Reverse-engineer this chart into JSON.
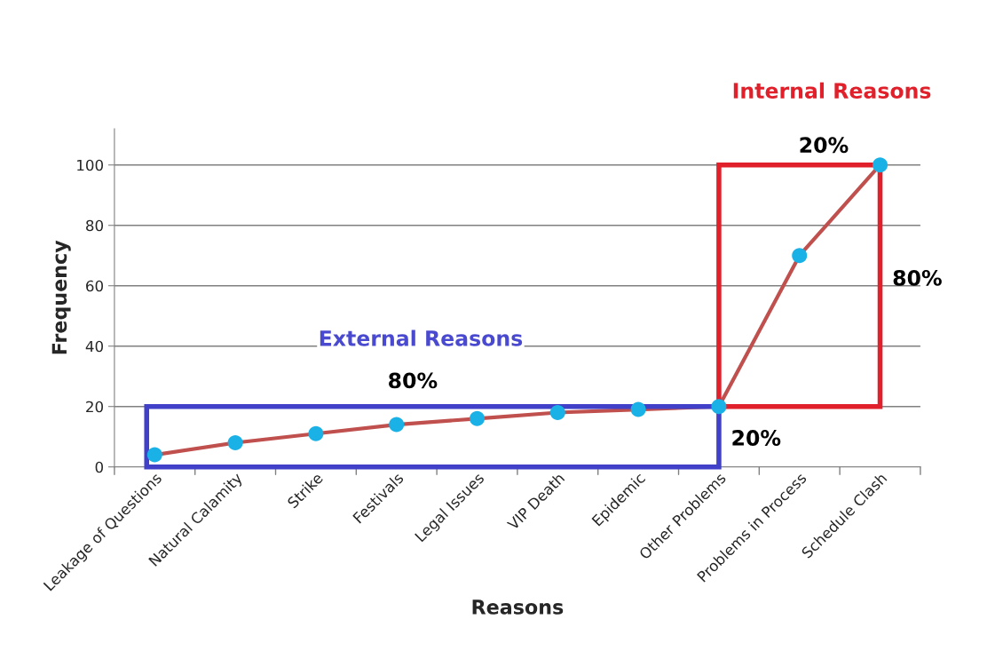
{
  "chart_data": {
    "type": "line",
    "categories": [
      "Leakage of Questions",
      "Natural Calamity",
      "Strike",
      "Festivals",
      "Legal Issues",
      "VIP Death",
      "Epidemic",
      "Other Problems",
      "Problems in Process",
      "Schedule Clash"
    ],
    "series": [
      {
        "color": "#c0504d",
        "values": [
          4,
          8,
          11,
          14,
          16,
          18,
          19,
          20,
          70,
          100
        ]
      }
    ],
    "marker": "circle",
    "xlabel": "Reasons",
    "ylabel": "Frequency",
    "ylim": [
      0,
      112
    ],
    "yticks": [
      0,
      20,
      40,
      60,
      80,
      100
    ],
    "grid": "y",
    "annotations": [
      "External Reasons",
      "80%",
      "20%",
      "Internal Reasons",
      "20%",
      "80%"
    ]
  }
}
